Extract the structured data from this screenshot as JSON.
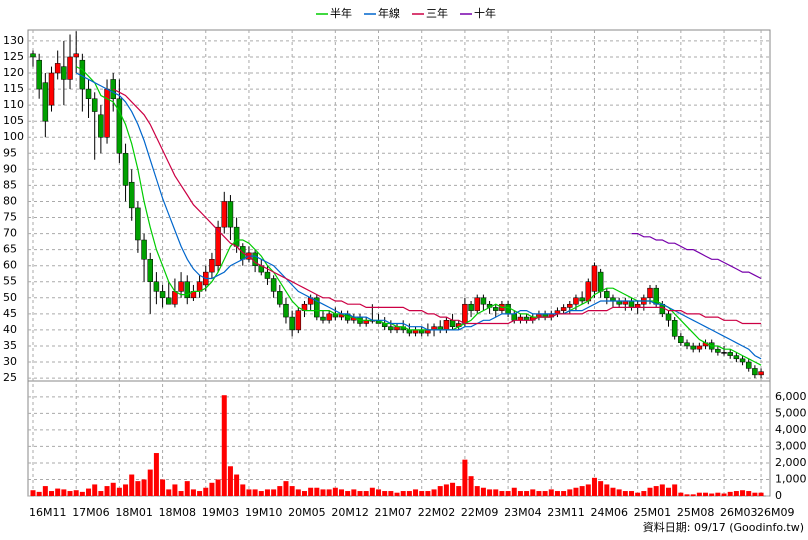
{
  "chart_data": {
    "type": "candlestick",
    "categories": [
      "16M11",
      null,
      null,
      null,
      null,
      null,
      null,
      "17M06",
      null,
      null,
      null,
      null,
      null,
      null,
      "18M01",
      null,
      null,
      null,
      null,
      null,
      null,
      "18M08",
      null,
      null,
      null,
      null,
      null,
      null,
      "19M03",
      null,
      null,
      null,
      null,
      null,
      null,
      "19M10",
      null,
      null,
      null,
      null,
      null,
      null,
      "20M05",
      null,
      null,
      null,
      null,
      null,
      null,
      "20M12",
      null,
      null,
      null,
      null,
      null,
      null,
      "21M07",
      null,
      null,
      null,
      null,
      null,
      null,
      "22M02",
      null,
      null,
      null,
      null,
      null,
      null,
      "22M09",
      null,
      null,
      null,
      null,
      null,
      null,
      "23M04",
      null,
      null,
      null,
      null,
      null,
      null,
      "23M11",
      null,
      null,
      null,
      null,
      null,
      null,
      "24M06",
      null,
      null,
      null,
      null,
      null,
      null,
      "25M01",
      null,
      null,
      null,
      null,
      null,
      null,
      "25M08",
      null,
      null,
      null,
      null,
      null,
      null,
      "26M03",
      null,
      null,
      null,
      null,
      null,
      "26M09"
    ],
    "open": [
      126,
      124,
      117,
      110,
      120,
      122,
      118,
      125,
      124,
      115,
      112,
      107,
      100,
      118,
      112,
      95,
      86,
      78,
      68,
      62,
      55,
      52,
      50,
      48,
      52,
      55,
      50,
      52,
      54,
      58,
      60,
      72,
      80,
      72,
      66,
      62,
      64,
      60,
      58,
      56,
      52,
      48,
      44,
      40,
      46,
      48,
      50,
      44,
      43,
      45,
      44,
      45,
      43,
      44,
      42,
      43,
      43,
      42,
      41,
      40,
      41,
      40,
      39,
      40,
      39,
      40,
      41,
      40,
      43,
      41,
      42,
      48,
      46,
      50,
      48,
      47,
      46,
      48,
      45,
      43,
      44,
      43,
      44,
      45,
      44,
      45,
      46,
      47,
      48,
      50,
      49,
      52,
      58,
      52,
      50,
      49,
      48,
      49,
      47,
      48,
      50,
      53,
      48,
      45,
      43,
      38,
      36,
      35,
      34,
      35,
      36,
      34,
      33,
      33,
      32,
      31,
      30,
      28,
      26
    ],
    "high": [
      127,
      126,
      120,
      122,
      127,
      130,
      132,
      133,
      126,
      118,
      114,
      110,
      118,
      120,
      118,
      98,
      90,
      80,
      70,
      64,
      58,
      54,
      55,
      56,
      58,
      57,
      54,
      57,
      60,
      64,
      74,
      83,
      82,
      75,
      67,
      66,
      65,
      62,
      60,
      57,
      54,
      50,
      46,
      47,
      49,
      51,
      51,
      46,
      46,
      47,
      46,
      46,
      45,
      45,
      44,
      48,
      45,
      44,
      43,
      42,
      43,
      42,
      41,
      41,
      42,
      42,
      43,
      44,
      45,
      43,
      50,
      49,
      51,
      51,
      49,
      48,
      49,
      49,
      46,
      45,
      45,
      45,
      46,
      46,
      46,
      47,
      48,
      49,
      51,
      52,
      56,
      61,
      59,
      53,
      51,
      50,
      50,
      50,
      49,
      51,
      54,
      54,
      49,
      46,
      44,
      39,
      37,
      36,
      36,
      37,
      37,
      35,
      35,
      34,
      33,
      32,
      31,
      29,
      28
    ],
    "low": [
      122,
      112,
      100,
      108,
      118,
      110,
      115,
      120,
      108,
      106,
      93,
      95,
      98,
      108,
      92,
      80,
      74,
      64,
      55,
      45,
      48,
      47,
      48,
      47,
      50,
      48,
      49,
      50,
      52,
      56,
      58,
      70,
      68,
      64,
      60,
      61,
      58,
      57,
      54,
      50,
      47,
      42,
      38,
      39,
      44,
      46,
      43,
      42,
      42,
      43,
      43,
      42,
      42,
      41,
      41,
      42,
      42,
      40,
      39,
      39,
      39,
      38,
      38,
      38,
      38,
      38,
      39,
      39,
      40,
      40,
      41,
      44,
      45,
      46,
      45,
      44,
      45,
      44,
      42,
      42,
      42,
      42,
      43,
      43,
      43,
      44,
      45,
      45,
      46,
      48,
      48,
      50,
      50,
      48,
      47,
      47,
      46,
      46,
      45,
      46,
      48,
      47,
      44,
      41,
      37,
      35,
      34,
      33,
      33,
      34,
      33,
      32,
      32,
      31,
      30,
      29,
      27,
      25,
      25
    ],
    "close": [
      125,
      115,
      105,
      120,
      123,
      118,
      125,
      126,
      115,
      112,
      108,
      100,
      115,
      112,
      95,
      85,
      78,
      68,
      62,
      55,
      52,
      50,
      48,
      52,
      55,
      50,
      52,
      55,
      58,
      62,
      72,
      80,
      72,
      66,
      62,
      64,
      60,
      58,
      56,
      52,
      48,
      44,
      40,
      46,
      48,
      50,
      44,
      43,
      45,
      44,
      45,
      43,
      44,
      42,
      43,
      43,
      42,
      41,
      40,
      41,
      40,
      39,
      40,
      39,
      40,
      41,
      40,
      43,
      41,
      42,
      48,
      46,
      50,
      48,
      47,
      46,
      48,
      45,
      43,
      44,
      43,
      44,
      45,
      44,
      45,
      46,
      47,
      48,
      50,
      49,
      55,
      60,
      52,
      50,
      49,
      48,
      49,
      47,
      48,
      50,
      53,
      48,
      45,
      43,
      38,
      36,
      35,
      34,
      35,
      36,
      34,
      33,
      33,
      32,
      31,
      30,
      28,
      26,
      27
    ],
    "volume": [
      350,
      250,
      600,
      300,
      450,
      400,
      300,
      350,
      250,
      450,
      700,
      300,
      600,
      800,
      500,
      700,
      1300,
      900,
      1000,
      1600,
      2600,
      1000,
      400,
      700,
      300,
      900,
      400,
      300,
      500,
      800,
      1000,
      6100,
      1800,
      1300,
      700,
      400,
      400,
      300,
      400,
      400,
      600,
      900,
      600,
      400,
      300,
      500,
      500,
      400,
      400,
      500,
      400,
      300,
      400,
      300,
      300,
      500,
      400,
      300,
      300,
      200,
      300,
      300,
      400,
      300,
      300,
      400,
      600,
      700,
      800,
      600,
      2200,
      1200,
      600,
      500,
      400,
      400,
      300,
      300,
      500,
      300,
      300,
      400,
      300,
      300,
      400,
      300,
      300,
      400,
      500,
      600,
      700,
      1100,
      900,
      700,
      500,
      400,
      300,
      300,
      200,
      300,
      500,
      600,
      700,
      500,
      700,
      200,
      100,
      100,
      200,
      200,
      150,
      200,
      150,
      250,
      300,
      350,
      300,
      200,
      200
    ],
    "up_color": "#ff0000",
    "down_color": "#00a000",
    "volume_color": "#ff0000",
    "series": [
      {
        "name": "半年",
        "color": "#00cc00",
        "values": [
          null,
          null,
          null,
          null,
          null,
          null,
          null,
          122,
          121,
          119,
          117,
          113,
          112,
          111,
          108,
          104,
          98,
          90,
          80,
          72,
          65,
          60,
          55,
          52,
          51,
          51,
          52,
          52,
          53,
          55,
          58,
          62,
          66,
          68,
          68,
          67,
          65,
          63,
          60,
          58,
          55,
          52,
          49,
          47,
          46,
          46,
          46,
          46,
          46,
          45,
          45,
          44,
          44,
          43,
          43,
          43,
          43,
          42,
          42,
          41,
          41,
          40,
          40,
          40,
          40,
          40,
          40,
          40,
          40,
          41,
          42,
          43,
          45,
          46,
          47,
          48,
          47,
          47,
          46,
          45,
          45,
          44,
          44,
          44,
          44,
          45,
          45,
          46,
          47,
          48,
          49,
          51,
          52,
          53,
          53,
          52,
          51,
          50,
          49,
          49,
          49,
          49,
          48,
          47,
          45,
          43,
          41,
          39,
          37,
          36,
          35,
          35,
          34,
          34,
          33,
          32,
          31,
          30,
          29
        ]
      },
      {
        "name": "年線",
        "color": "#0066cc",
        "values": [
          null,
          null,
          null,
          null,
          null,
          null,
          null,
          120,
          119,
          118,
          117,
          116,
          115,
          114,
          113,
          111,
          108,
          104,
          99,
          93,
          87,
          81,
          76,
          71,
          66,
          62,
          59,
          57,
          56,
          56,
          57,
          58,
          60,
          61,
          62,
          63,
          63,
          62,
          61,
          60,
          58,
          56,
          54,
          52,
          51,
          50,
          49,
          48,
          47,
          46,
          45,
          45,
          44,
          44,
          44,
          43,
          43,
          43,
          42,
          42,
          42,
          41,
          41,
          41,
          40,
          40,
          40,
          40,
          40,
          40,
          41,
          41,
          42,
          43,
          43,
          44,
          45,
          45,
          45,
          46,
          46,
          45,
          45,
          45,
          45,
          45,
          45,
          46,
          46,
          46,
          47,
          48,
          49,
          49,
          49,
          49,
          49,
          49,
          49,
          49,
          49,
          48,
          48,
          47,
          46,
          45,
          44,
          43,
          42,
          41,
          40,
          39,
          38,
          37,
          36,
          35,
          34,
          32,
          31
        ]
      },
      {
        "name": "三年",
        "color": "#cc0044",
        "values": [
          null,
          null,
          null,
          null,
          null,
          null,
          null,
          null,
          null,
          null,
          null,
          null,
          null,
          115,
          114,
          113,
          111,
          109,
          107,
          104,
          100,
          96,
          92,
          88,
          85,
          82,
          79,
          77,
          75,
          73,
          71,
          69,
          67,
          66,
          64,
          63,
          61,
          60,
          59,
          58,
          57,
          56,
          55,
          54,
          53,
          52,
          51,
          50,
          50,
          49,
          49,
          48,
          48,
          48,
          47,
          47,
          47,
          47,
          47,
          47,
          47,
          46,
          46,
          46,
          45,
          45,
          44,
          44,
          43,
          43,
          42,
          42,
          42,
          42,
          42,
          42,
          42,
          42,
          43,
          43,
          43,
          43,
          44,
          44,
          44,
          45,
          45,
          45,
          45,
          45,
          46,
          46,
          46,
          46,
          47,
          47,
          47,
          47,
          47,
          47,
          47,
          47,
          47,
          46,
          46,
          46,
          45,
          45,
          45,
          44,
          44,
          44,
          43,
          43,
          43,
          42,
          42,
          42,
          42
        ]
      },
      {
        "name": "十年",
        "color": "#7700aa",
        "values": [
          null,
          null,
          null,
          null,
          null,
          null,
          null,
          null,
          null,
          null,
          null,
          null,
          null,
          null,
          null,
          null,
          null,
          null,
          null,
          null,
          null,
          null,
          null,
          null,
          null,
          null,
          null,
          null,
          null,
          null,
          null,
          null,
          null,
          null,
          null,
          null,
          null,
          null,
          null,
          null,
          null,
          null,
          null,
          null,
          null,
          null,
          null,
          null,
          null,
          null,
          null,
          null,
          null,
          null,
          null,
          null,
          null,
          null,
          null,
          null,
          null,
          null,
          null,
          null,
          null,
          null,
          null,
          null,
          null,
          null,
          null,
          null,
          null,
          null,
          null,
          null,
          null,
          null,
          null,
          null,
          null,
          null,
          null,
          null,
          null,
          null,
          null,
          null,
          null,
          null,
          null,
          null,
          null,
          null,
          null,
          null,
          null,
          70,
          70,
          69,
          69,
          68,
          68,
          67,
          67,
          66,
          65,
          65,
          64,
          63,
          62,
          62,
          61,
          60,
          59,
          58,
          58,
          57,
          56
        ]
      }
    ],
    "ylim": [
      24.4,
      133.4
    ],
    "yticks": [
      25,
      30,
      35,
      40,
      45,
      50,
      55,
      60,
      65,
      70,
      75,
      80,
      85,
      90,
      95,
      100,
      105,
      110,
      115,
      120,
      125,
      130
    ],
    "volume_lim": [
      0,
      6960
    ],
    "volume_ticks": [
      0,
      {
        "value": 1000,
        "label": "1,000"
      },
      {
        "value": 2000,
        "label": "2,000"
      },
      {
        "value": 3000,
        "label": "3,000"
      },
      {
        "value": 4000,
        "label": "4,000"
      },
      {
        "value": 5000,
        "label": "5,000"
      },
      {
        "value": 6000,
        "label": "6,000"
      }
    ],
    "grid": true,
    "footer": "資料日期: 09/17 (Goodinfo.tw)"
  }
}
